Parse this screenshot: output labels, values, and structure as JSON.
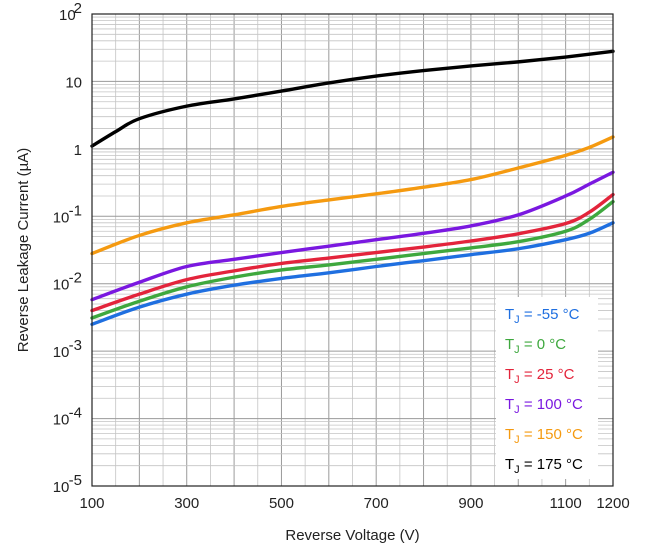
{
  "chart_data": {
    "type": "line",
    "xlabel": "Reverse Voltage (V)",
    "ylabel": "Reverse Leakage Current (µA)",
    "xlim": [
      100,
      1200
    ],
    "ylim": [
      1e-05,
      100
    ],
    "y_scale": "log",
    "grid": true,
    "legend_position": "bottom-right",
    "x_ticks": [
      {
        "value": 100,
        "label": "100"
      },
      {
        "value": 300,
        "label": "300"
      },
      {
        "value": 500,
        "label": "500"
      },
      {
        "value": 700,
        "label": "700"
      },
      {
        "value": 900,
        "label": "900"
      },
      {
        "value": 1100,
        "label": "1100"
      },
      {
        "value": 1200,
        "label": "1200"
      }
    ],
    "y_ticks": [
      {
        "value": 100,
        "base": "10",
        "exp": "2"
      },
      {
        "value": 10,
        "base": "10",
        "exp": ""
      },
      {
        "value": 1,
        "base": "1",
        "exp": ""
      },
      {
        "value": 0.1,
        "base": "10",
        "exp": "-1"
      },
      {
        "value": 0.01,
        "base": "10",
        "exp": "-2"
      },
      {
        "value": 0.001,
        "base": "10",
        "exp": "-3"
      },
      {
        "value": 0.0001,
        "base": "10",
        "exp": "-4"
      },
      {
        "value": 1e-05,
        "base": "10",
        "exp": "-5"
      }
    ],
    "series": [
      {
        "prefix": "T",
        "sub": "J",
        "suffix": " = -55 °C",
        "color": "#1f6fe0",
        "points": [
          [
            100,
            0.0025
          ],
          [
            200,
            0.0045
          ],
          [
            300,
            0.007
          ],
          [
            400,
            0.0095
          ],
          [
            500,
            0.012
          ],
          [
            600,
            0.0145
          ],
          [
            700,
            0.018
          ],
          [
            800,
            0.022
          ],
          [
            900,
            0.027
          ],
          [
            1000,
            0.033
          ],
          [
            1100,
            0.045
          ],
          [
            1150,
            0.056
          ],
          [
            1200,
            0.08
          ]
        ]
      },
      {
        "prefix": "T",
        "sub": "J",
        "suffix": " = 0 °C",
        "color": "#3ea83e",
        "points": [
          [
            100,
            0.0031
          ],
          [
            200,
            0.0055
          ],
          [
            300,
            0.009
          ],
          [
            400,
            0.0125
          ],
          [
            500,
            0.016
          ],
          [
            600,
            0.019
          ],
          [
            700,
            0.023
          ],
          [
            800,
            0.028
          ],
          [
            900,
            0.034
          ],
          [
            1000,
            0.042
          ],
          [
            1100,
            0.06
          ],
          [
            1150,
            0.09
          ],
          [
            1200,
            0.165
          ]
        ]
      },
      {
        "prefix": "T",
        "sub": "J",
        "suffix": " = 25 °C",
        "color": "#e3243b",
        "points": [
          [
            100,
            0.004
          ],
          [
            200,
            0.007
          ],
          [
            300,
            0.0115
          ],
          [
            400,
            0.0155
          ],
          [
            500,
            0.02
          ],
          [
            600,
            0.024
          ],
          [
            700,
            0.029
          ],
          [
            800,
            0.035
          ],
          [
            900,
            0.043
          ],
          [
            1000,
            0.055
          ],
          [
            1100,
            0.078
          ],
          [
            1150,
            0.115
          ],
          [
            1200,
            0.21
          ]
        ]
      },
      {
        "prefix": "T",
        "sub": "J",
        "suffix": " = 100 °C",
        "color": "#7a18e0",
        "points": [
          [
            100,
            0.0058
          ],
          [
            200,
            0.0105
          ],
          [
            300,
            0.018
          ],
          [
            400,
            0.023
          ],
          [
            500,
            0.029
          ],
          [
            600,
            0.036
          ],
          [
            700,
            0.045
          ],
          [
            800,
            0.056
          ],
          [
            900,
            0.072
          ],
          [
            1000,
            0.105
          ],
          [
            1100,
            0.2
          ],
          [
            1150,
            0.3
          ],
          [
            1200,
            0.45
          ]
        ]
      },
      {
        "prefix": "T",
        "sub": "J",
        "suffix": " = 150 °C",
        "color": "#f59a10",
        "points": [
          [
            100,
            0.028
          ],
          [
            200,
            0.052
          ],
          [
            300,
            0.08
          ],
          [
            400,
            0.105
          ],
          [
            500,
            0.14
          ],
          [
            600,
            0.175
          ],
          [
            700,
            0.215
          ],
          [
            800,
            0.27
          ],
          [
            900,
            0.35
          ],
          [
            1000,
            0.52
          ],
          [
            1100,
            0.8
          ],
          [
            1150,
            1.05
          ],
          [
            1200,
            1.5
          ]
        ]
      },
      {
        "prefix": "T",
        "sub": "J",
        "suffix": " = 175 °C",
        "color": "#000000",
        "points": [
          [
            100,
            1.1
          ],
          [
            150,
            1.8
          ],
          [
            200,
            2.8
          ],
          [
            300,
            4.3
          ],
          [
            400,
            5.5
          ],
          [
            500,
            7.2
          ],
          [
            600,
            9.5
          ],
          [
            700,
            12
          ],
          [
            800,
            14.5
          ],
          [
            900,
            17
          ],
          [
            1000,
            19.5
          ],
          [
            1100,
            23
          ],
          [
            1200,
            28
          ]
        ]
      }
    ]
  }
}
